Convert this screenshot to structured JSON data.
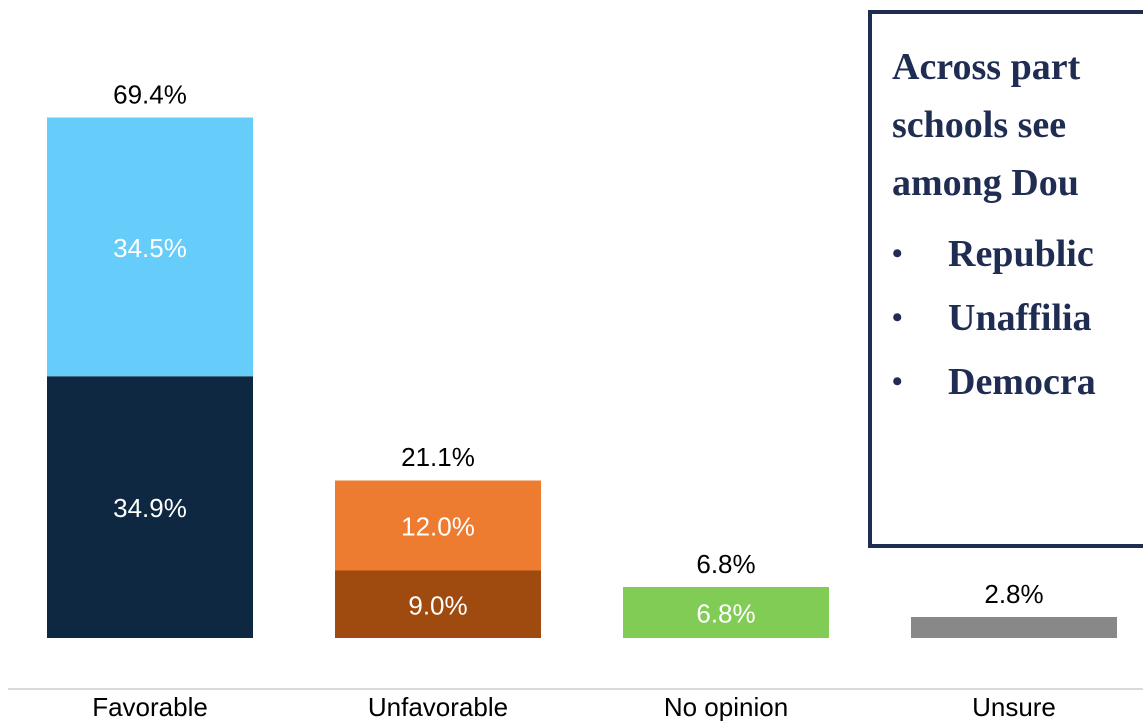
{
  "chart_data": {
    "type": "bar",
    "stacked": true,
    "categories": [
      "Favorable",
      "Unfavorable",
      "No opinion",
      "Unsure"
    ],
    "totals": [
      "69.4%",
      "21.1%",
      "6.8%",
      "2.8%"
    ],
    "total_values": [
      69.4,
      21.1,
      6.8,
      2.8
    ],
    "segments": [
      [
        {
          "value": 34.9,
          "label": "34.9%",
          "color": "#0d2840"
        },
        {
          "value": 34.5,
          "label": "34.5%",
          "color": "#66ccfa"
        }
      ],
      [
        {
          "value": 9.0,
          "label": "9.0%",
          "color": "#9f4a0e"
        },
        {
          "value": 12.0,
          "label": "12.0%",
          "color": "#ed7c31"
        }
      ],
      [
        {
          "value": 6.8,
          "label": "6.8%",
          "color": "#80cc55"
        }
      ],
      [
        {
          "value": 2.8,
          "label": "",
          "color": "#888888"
        }
      ]
    ],
    "ylim": [
      0,
      75
    ],
    "grid": false,
    "axis_line_color": "#d9d9d9"
  },
  "callout": {
    "heading_lines": [
      "Across part",
      "schools see",
      "among Dou"
    ],
    "items": [
      "Republic",
      "Unaffilia",
      "Democra"
    ],
    "bullet": "•",
    "border_color": "#1f2d52"
  }
}
